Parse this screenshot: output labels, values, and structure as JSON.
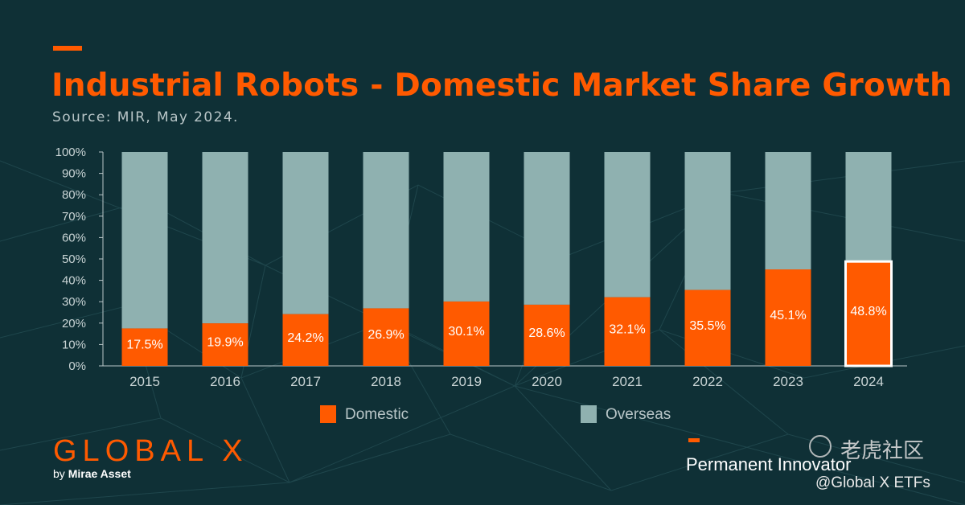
{
  "title": "Industrial Robots - Domestic Market Share Growth",
  "subtitle": "Source: MIR, May 2024.",
  "colors": {
    "domestic": "#ff5a00",
    "overseas": "#8fb1b0",
    "background": "#0f3036",
    "accent": "#ff5a00"
  },
  "chart_data": {
    "type": "bar",
    "stacked": true,
    "categories": [
      "2015",
      "2016",
      "2017",
      "2018",
      "2019",
      "2020",
      "2021",
      "2022",
      "2023",
      "2024"
    ],
    "series": [
      {
        "name": "Domestic",
        "values": [
          17.5,
          19.9,
          24.2,
          26.9,
          30.1,
          28.6,
          32.1,
          35.5,
          45.1,
          48.8
        ]
      },
      {
        "name": "Overseas",
        "values": [
          82.5,
          80.1,
          75.8,
          73.1,
          69.9,
          71.4,
          67.9,
          64.5,
          54.9,
          51.2
        ]
      }
    ],
    "data_labels": [
      "17.5%",
      "19.9%",
      "24.2%",
      "26.9%",
      "30.1%",
      "28.6%",
      "32.1%",
      "35.5%",
      "45.1%",
      "48.8%"
    ],
    "y_ticks": [
      "0%",
      "10%",
      "20%",
      "30%",
      "40%",
      "50%",
      "60%",
      "70%",
      "80%",
      "90%",
      "100%"
    ],
    "ylim": [
      0,
      100
    ],
    "highlighted_category": "2024",
    "legend_position": "bottom",
    "grid": false
  },
  "legend": {
    "domestic": "Domestic",
    "overseas": "Overseas"
  },
  "brand": {
    "name": "GLOBAL X",
    "by": "by",
    "parent": "Mirae Asset",
    "tagline": "Permanent Innovator"
  },
  "watermark": {
    "text": "老虎社区",
    "handle": "@Global X ETFs"
  }
}
